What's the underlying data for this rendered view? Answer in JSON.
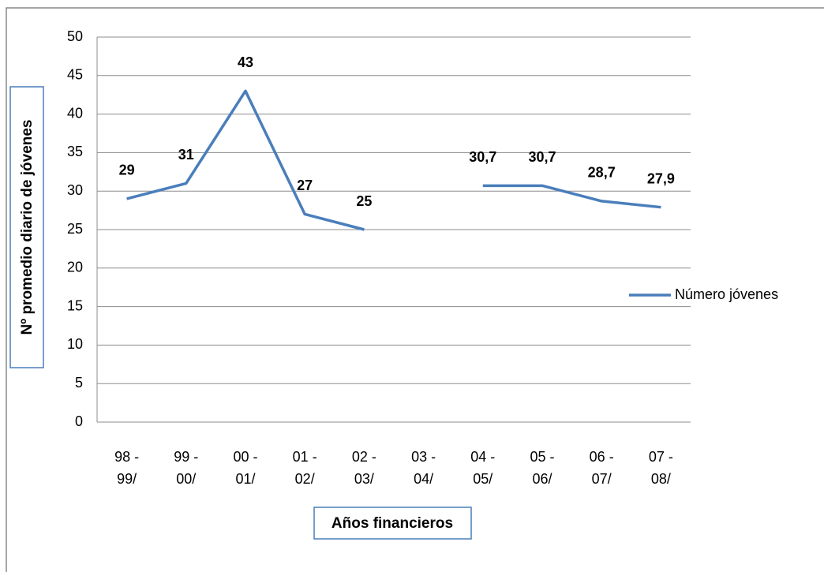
{
  "chart_data": {
    "type": "line",
    "y_axis_label": "Nº promedio diario de jóvenes",
    "x_axis_label": "Años financieros",
    "categories": [
      "98 - 99/",
      "99 - 00/",
      "00 - 01/",
      "01 - 02/",
      "02 - 03/",
      "03 - 04/",
      "04 - 05/",
      "05 - 06/",
      "06 - 07/",
      "07 - 08/"
    ],
    "series": [
      {
        "name": "Número jóvenes",
        "color": "#4a7ebb",
        "values": [
          29,
          31,
          43,
          27,
          25,
          null,
          30.7,
          30.7,
          28.7,
          27.9
        ],
        "value_labels": [
          "29",
          "31",
          "43",
          "27",
          "25",
          null,
          "30,7",
          "30,7",
          "28,7",
          "27,9"
        ]
      }
    ],
    "ylim": [
      0,
      50
    ],
    "yticks": [
      0,
      5,
      10,
      15,
      20,
      25,
      30,
      35,
      40,
      45,
      50
    ],
    "grid": true,
    "legend": "right"
  }
}
